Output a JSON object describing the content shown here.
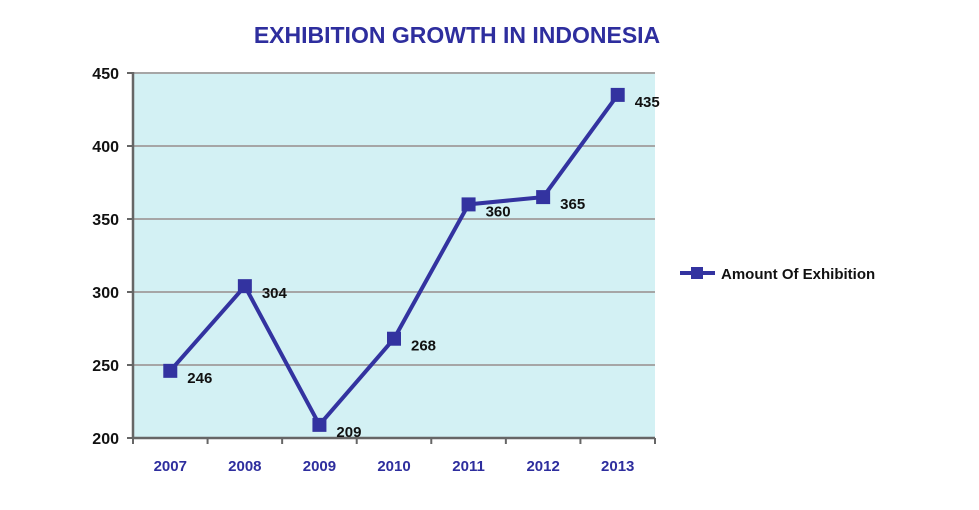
{
  "chart_data": {
    "type": "line",
    "title": "EXHIBITION GROWTH IN INDONESIA",
    "xlabel": "",
    "ylabel": "",
    "categories": [
      "2007",
      "2008",
      "2009",
      "2010",
      "2011",
      "2012",
      "2013"
    ],
    "series": [
      {
        "name": "Amount Of Exhibition",
        "values": [
          246,
          304,
          209,
          268,
          360,
          365,
          435
        ]
      }
    ],
    "ylim": [
      200,
      450
    ],
    "yticks": [
      200,
      250,
      300,
      350,
      400,
      450
    ],
    "grid": true,
    "legend": "right",
    "colors": {
      "line": "#3333a0",
      "plot_bg": "#d3f1f4",
      "grid": "#a6a6a6",
      "title": "#2e2e9e",
      "xtick": "#2e2e9e"
    }
  }
}
